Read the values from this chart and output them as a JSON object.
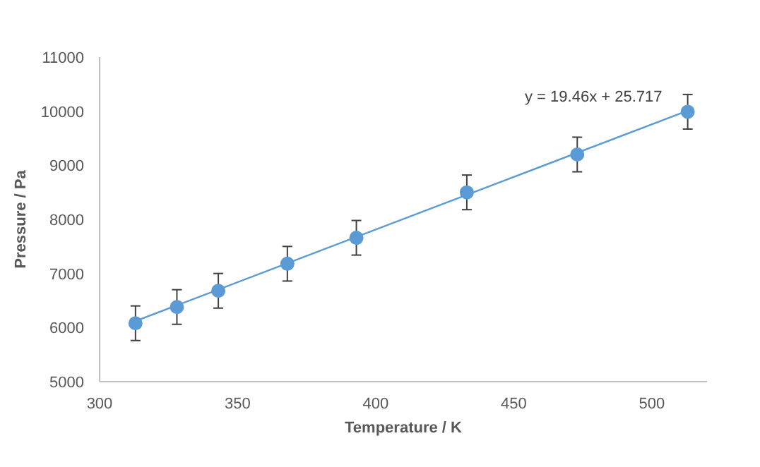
{
  "chart_data": {
    "type": "scatter",
    "xlabel": "Temperature / K",
    "ylabel": "Pressure / Pa",
    "xlim": [
      300,
      520
    ],
    "xticks": [
      300,
      350,
      400,
      450,
      500
    ],
    "ylim": [
      5000,
      11000
    ],
    "yticks": [
      5000,
      6000,
      7000,
      8000,
      9000,
      10000,
      11000
    ],
    "grid": false,
    "marker": "circle",
    "series": [
      {
        "type": "scatter",
        "color": "#5b9bd5",
        "x": [
          313,
          328,
          343,
          368,
          393,
          433,
          473,
          513
        ],
        "values": [
          6080,
          6380,
          6680,
          7180,
          7660,
          8500,
          9200,
          9990
        ],
        "errors": [
          320,
          320,
          320,
          320,
          320,
          320,
          320,
          320
        ]
      },
      {
        "type": "line",
        "color": "#5b9bd5",
        "x": [
          313,
          513
        ],
        "values": [
          6120,
          10010
        ],
        "marker": "none",
        "line_style": "solid"
      }
    ],
    "annotations": [
      "y = 19.46x + 25.717"
    ]
  }
}
